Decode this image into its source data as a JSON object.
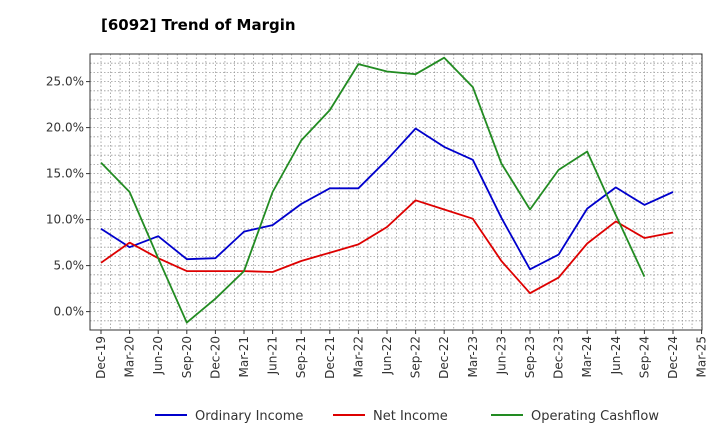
{
  "chart_data": {
    "type": "line",
    "title": "[6092]  Trend of Margin",
    "xlabel": "",
    "ylabel": "",
    "ylim": [
      -2.0,
      28.0
    ],
    "y_ticks": [
      0,
      5,
      10,
      15,
      20,
      25
    ],
    "y_tick_labels": [
      "0.0%",
      "5.0%",
      "10.0%",
      "15.0%",
      "20.0%",
      "25.0%"
    ],
    "categories": [
      "Dec-19",
      "Mar-20",
      "Jun-20",
      "Sep-20",
      "Dec-20",
      "Mar-21",
      "Jun-21",
      "Sep-21",
      "Dec-21",
      "Mar-22",
      "Jun-22",
      "Sep-22",
      "Dec-22",
      "Mar-23",
      "Jun-23",
      "Sep-23",
      "Dec-23",
      "Mar-24",
      "Jun-24",
      "Sep-24",
      "Dec-24",
      "Mar-25"
    ],
    "grid": true,
    "legend_position": "bottom",
    "series": [
      {
        "name": "Ordinary Income",
        "color": "#0000cc",
        "values": [
          9.0,
          7.0,
          8.2,
          5.7,
          5.8,
          8.7,
          9.4,
          11.7,
          13.4,
          13.4,
          16.5,
          19.9,
          17.9,
          16.5,
          10.2,
          4.6,
          6.2,
          11.2,
          13.5,
          11.6,
          13.0,
          null
        ]
      },
      {
        "name": "Net Income",
        "color": "#dd0000",
        "values": [
          5.3,
          7.5,
          5.8,
          4.4,
          4.4,
          4.4,
          4.3,
          5.5,
          6.4,
          7.3,
          9.2,
          12.1,
          11.1,
          10.1,
          5.5,
          2.0,
          3.7,
          7.4,
          9.8,
          8.0,
          8.6,
          null
        ]
      },
      {
        "name": "Operating Cashflow",
        "color": "#228B22",
        "values": [
          16.2,
          13.0,
          5.8,
          -1.2,
          1.4,
          4.4,
          13.0,
          18.6,
          21.9,
          26.9,
          26.1,
          25.8,
          27.6,
          24.4,
          16.1,
          11.1,
          15.4,
          17.4,
          10.5,
          3.8,
          null,
          null
        ]
      }
    ]
  }
}
